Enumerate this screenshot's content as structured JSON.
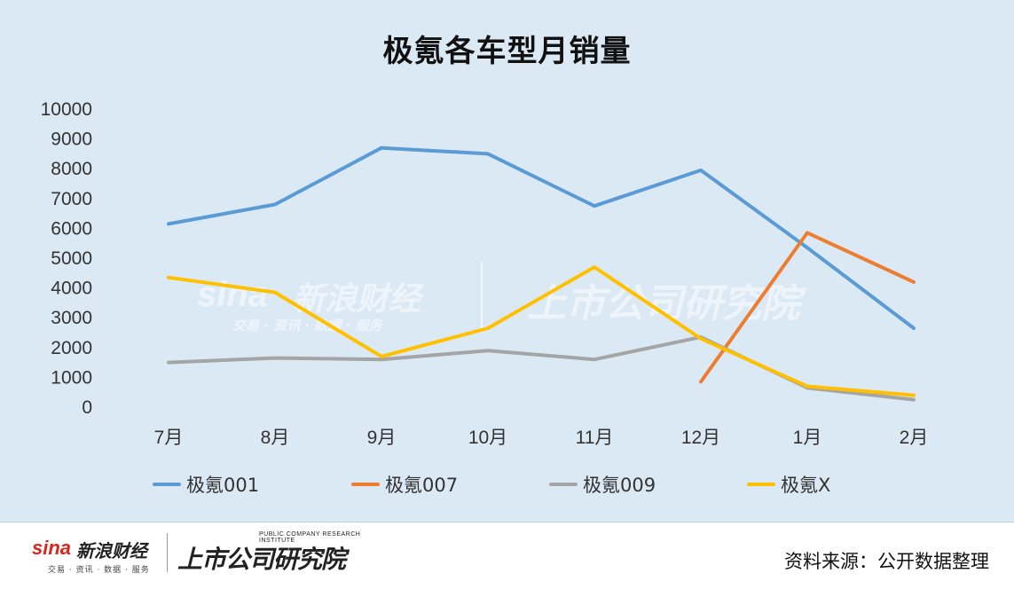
{
  "chart_data": {
    "type": "line",
    "title": "极氪各车型月销量",
    "categories": [
      "7月",
      "8月",
      "9月",
      "10月",
      "11月",
      "12月",
      "1月",
      "2月"
    ],
    "ylim": [
      0,
      10000
    ],
    "yticks": [
      "0",
      "1000",
      "2000",
      "3000",
      "4000",
      "5000",
      "6000",
      "7000",
      "8000",
      "9000",
      "10000"
    ],
    "grid": false,
    "legend_position": "bottom",
    "series": [
      {
        "name": "极氪001",
        "color": "#5b9bd5",
        "values": [
          6150,
          6800,
          8700,
          8500,
          6750,
          7950,
          5350,
          2650
        ]
      },
      {
        "name": "极氪007",
        "color": "#ed7d31",
        "values": [
          null,
          null,
          null,
          null,
          null,
          850,
          5850,
          4200
        ]
      },
      {
        "name": "极氪009",
        "color": "#a5a5a5",
        "values": [
          1500,
          1650,
          1600,
          1900,
          1600,
          2350,
          650,
          250
        ]
      },
      {
        "name": "极氪X",
        "color": "#ffc000",
        "values": [
          4350,
          3850,
          1700,
          2650,
          4700,
          2300,
          700,
          400
        ]
      }
    ]
  },
  "watermark": {
    "brand": "sina",
    "name": "新浪财经",
    "sub": "交易 · 资讯 · 数据 · 服务",
    "research": "上市公司研究院"
  },
  "footer": {
    "sina_brand": "sina",
    "sina_name": "新浪财经",
    "sina_sub": "交易 · 资讯 · 数据 · 服务",
    "research_en": "PUBLIC COMPANY RESEARCH INSTITUTE",
    "research_cn": "上市公司研究院",
    "source": "资料来源：公开数据整理"
  }
}
